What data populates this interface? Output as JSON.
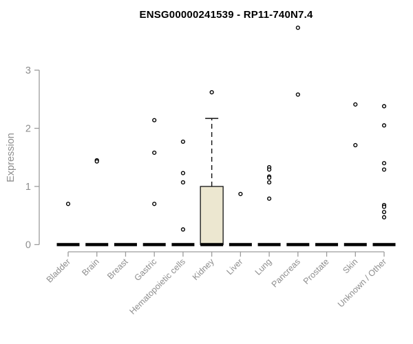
{
  "chart_data": {
    "type": "boxplot",
    "title": "ENSG00000241539 - RP11-740N7.4",
    "ylabel": "Expression",
    "xlabel": "",
    "ylim": [
      0,
      3
    ],
    "yticks": [
      "0",
      "1",
      "2",
      "3"
    ],
    "grid": false,
    "legend": "none",
    "categories": [
      "Bladder",
      "Brain",
      "Breast",
      "Gastric",
      "Hematopoietic cells",
      "Kidney",
      "Liver",
      "Lung",
      "Pancreas",
      "Prostate",
      "Skin",
      "Unknown / Other"
    ],
    "zero_median_bar_values": [
      0,
      0,
      0,
      0,
      0,
      0,
      0,
      0,
      0,
      0,
      0,
      0
    ],
    "points": [
      [
        0.7
      ],
      [
        1.45,
        1.43
      ],
      [],
      [
        2.14,
        1.58,
        0.7
      ],
      [
        1.77,
        1.23,
        1.07,
        0.26
      ],
      [
        2.62
      ],
      [
        0.87
      ],
      [
        1.33,
        1.29,
        1.17,
        1.15,
        1.07,
        0.79
      ],
      [
        3.73,
        2.58
      ],
      [],
      [
        2.41,
        1.71
      ],
      [
        2.38,
        2.05,
        1.4,
        1.29,
        0.68,
        0.65,
        0.56,
        0.47
      ]
    ],
    "boxes": [
      {
        "category_index": 5,
        "category": "Kidney",
        "q1": 0,
        "median": 0,
        "q3": 1.0,
        "whisker_low": 0,
        "whisker_high": 2.17,
        "outliers": [
          2.62
        ]
      }
    ],
    "colors": {
      "box_fill": "#ECE7D0",
      "box_border": "#111111",
      "point_stroke": "#000000",
      "point_fill": "#ffffff",
      "zero_bar": "#050505",
      "axis_line": "#9c9c9c",
      "tick_label": "#8e8e8e",
      "title": "#000000"
    }
  }
}
